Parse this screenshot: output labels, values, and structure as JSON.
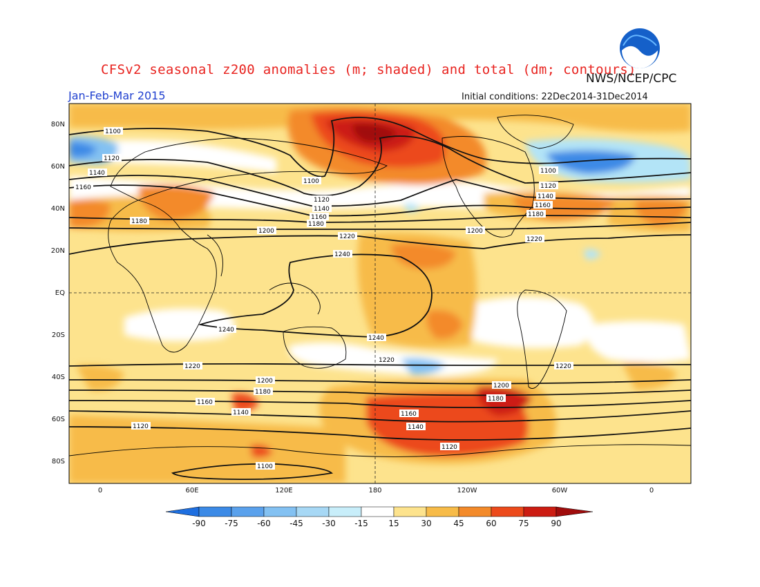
{
  "header": {
    "title": "CFSv2 seasonal z200 anomalies (m; shaded) and total (dm; contours)",
    "agency": "NWS/NCEP/CPC",
    "period": "Jan-Feb-Mar 2015",
    "initial_conditions": "Initial conditions: 22Dec2014-31Dec2014",
    "logo_text": "NOAA"
  },
  "map": {
    "lat_labels": [
      "80N",
      "60N",
      "40N",
      "20N",
      "EQ",
      "20S",
      "40S",
      "60S",
      "80S"
    ],
    "lon_labels": [
      "0",
      "60E",
      "120E",
      "180",
      "120W",
      "60W",
      "0"
    ],
    "contour_labels": [
      "1100",
      "1120",
      "1140",
      "1160",
      "1180",
      "1200",
      "1220",
      "1240"
    ],
    "colors": {
      "contour": "#111111",
      "land": "#000000",
      "guide": "#222222"
    }
  },
  "colorbar": {
    "labels": [
      "-90",
      "-75",
      "-60",
      "-45",
      "-30",
      "-15",
      "15",
      "30",
      "45",
      "60",
      "75",
      "90"
    ],
    "colors": [
      "#1e6fe0",
      "#3c8ae6",
      "#5aa1ec",
      "#83c1f2",
      "#b3e4f7",
      "#ffffff",
      "#fde38d",
      "#f7bb48",
      "#f38a2a",
      "#ec4a1b",
      "#cc1c12",
      "#a00c0c",
      "#a00c0c"
    ]
  }
}
